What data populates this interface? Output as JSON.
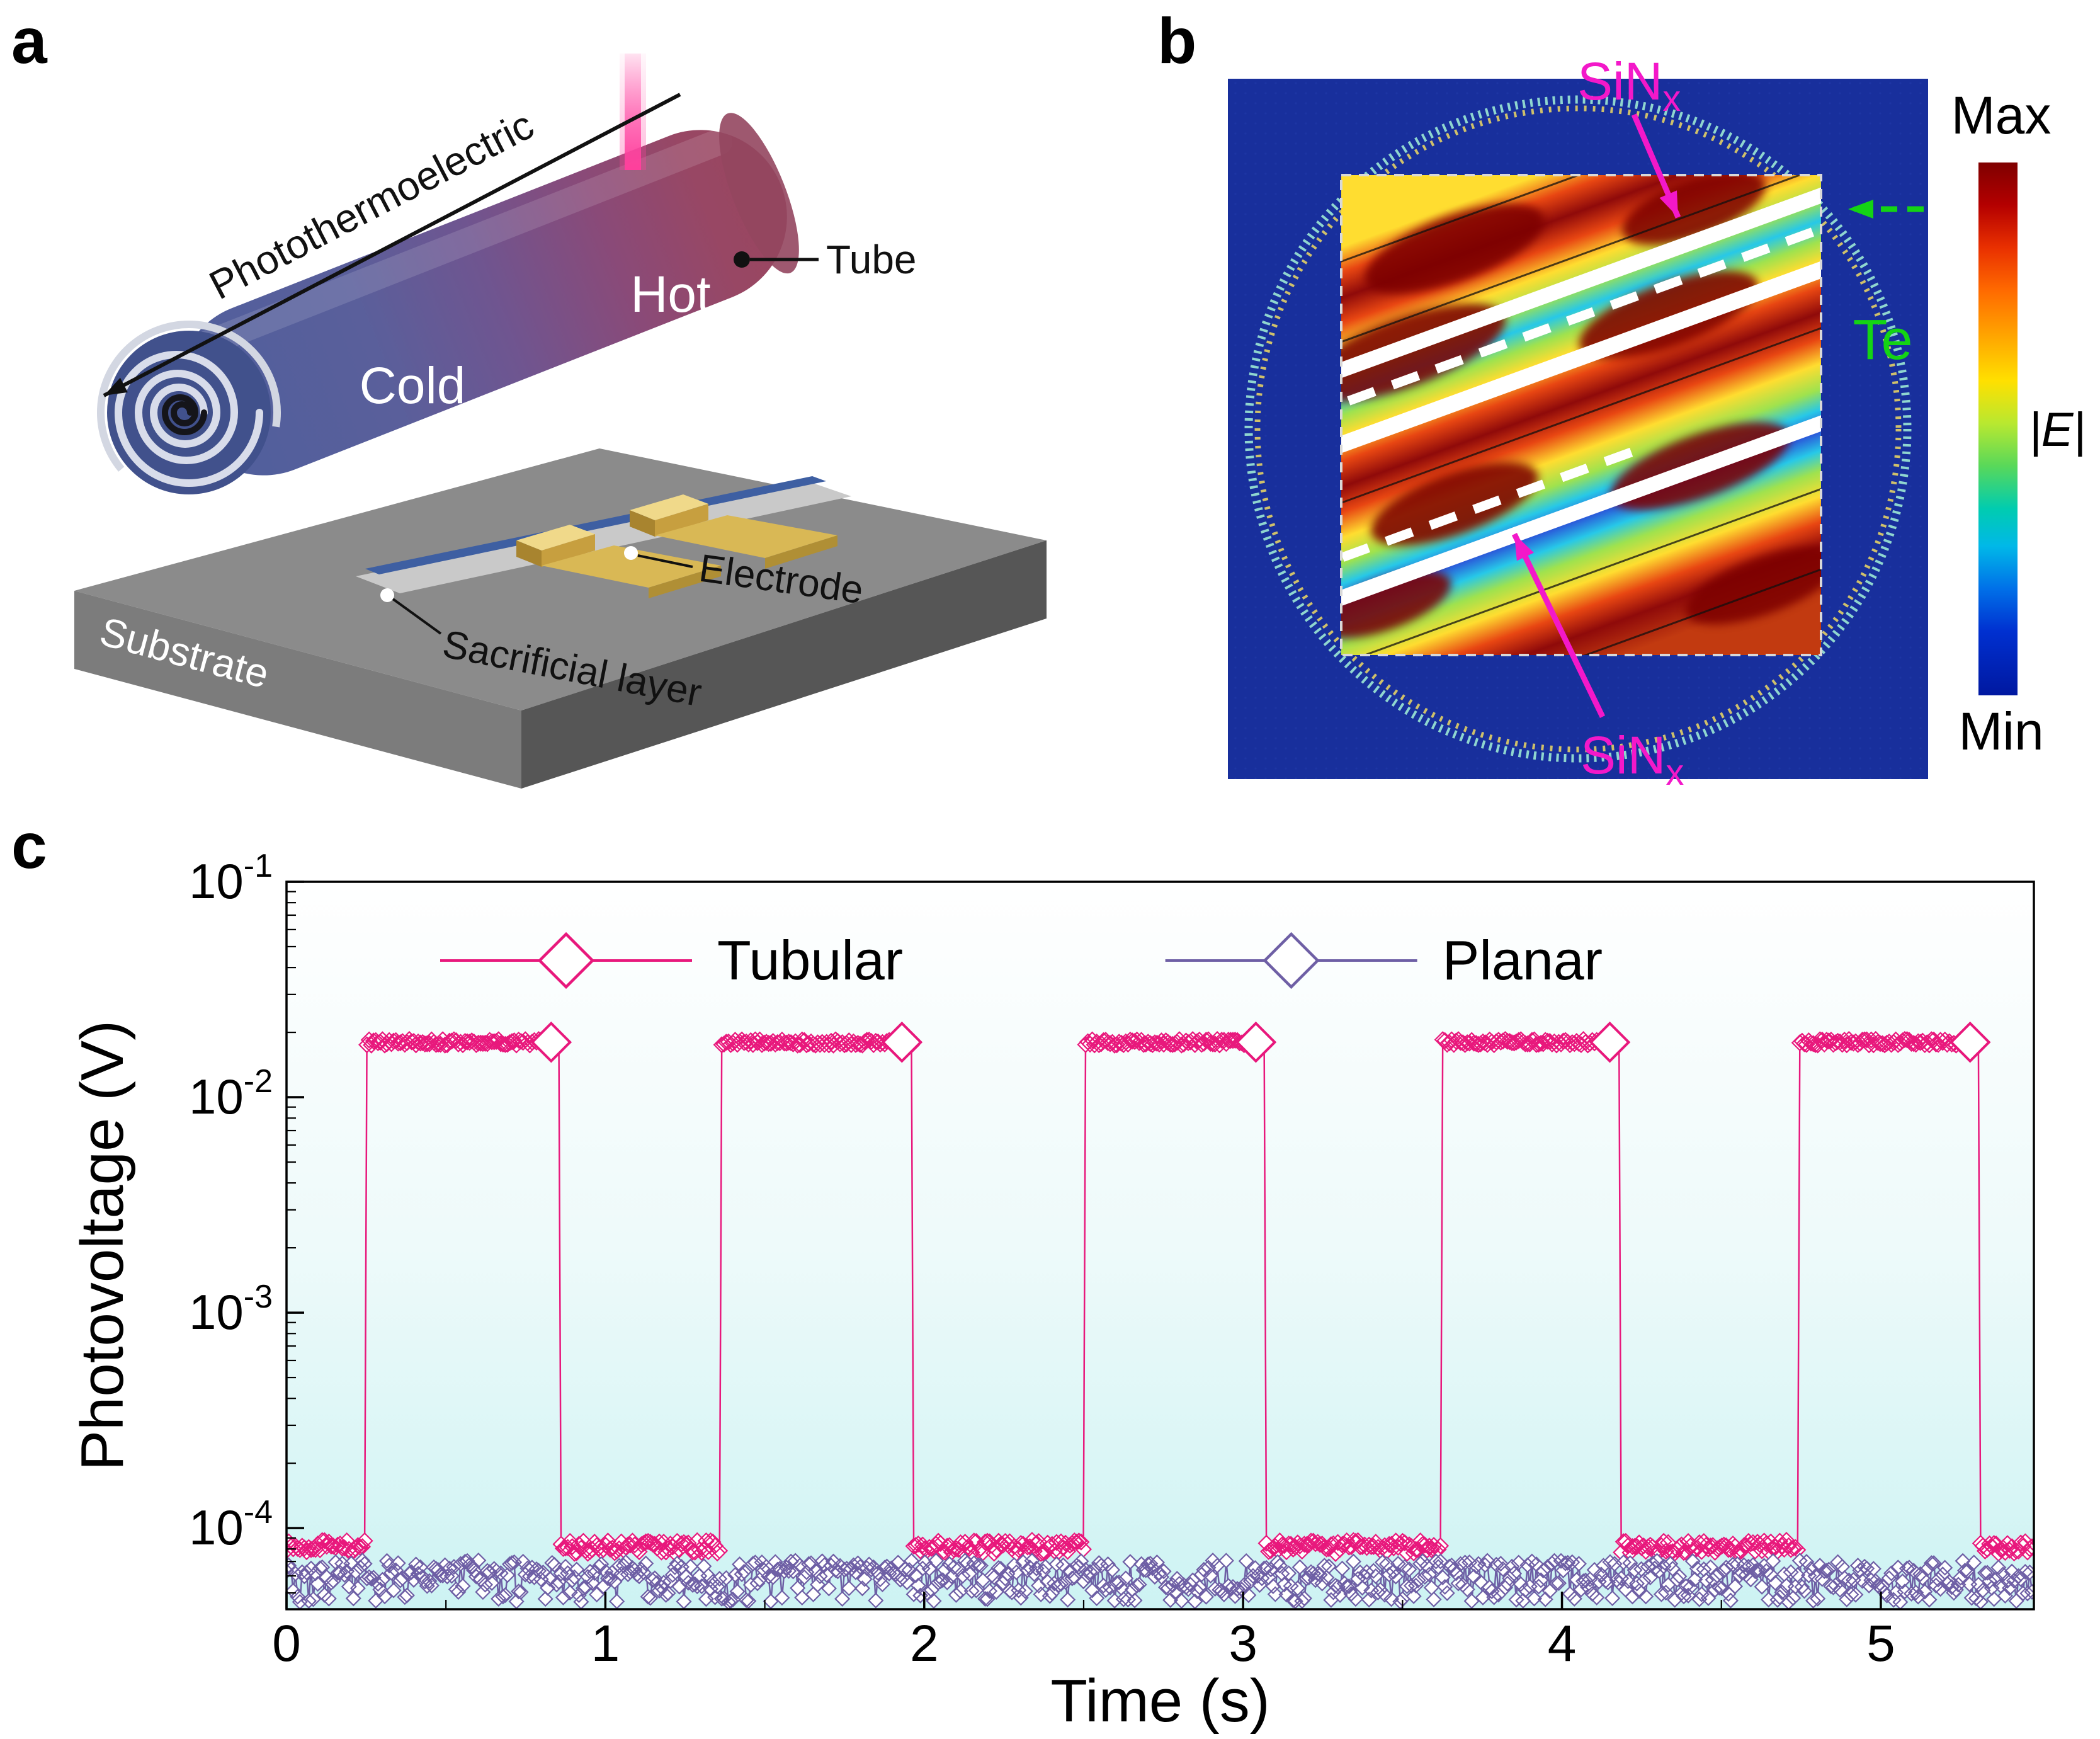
{
  "panels": {
    "a": "a",
    "b": "b",
    "c": "c"
  },
  "panel_a": {
    "arrow_label": "Photothermoelectric",
    "hot_label": "Hot",
    "cold_label": "Cold",
    "tube_label": "Tube",
    "electrode_label": "Electrode",
    "sacrificial_label": "Sacrificial layer",
    "substrate_label": "Substrate"
  },
  "panel_b": {
    "sinx_top": {
      "text": "SiN",
      "sub": "x"
    },
    "sinx_bottom": {
      "text": "SiN",
      "sub": "x"
    },
    "te_label": "Te",
    "colorbar": {
      "max": "Max",
      "min": "Min",
      "quantity": "|E|"
    },
    "colors": {
      "annotation_magenta": "#f318c9",
      "annotation_green": "#14d414",
      "background_blue": "#182f9c"
    }
  },
  "chart_data": {
    "type": "line",
    "title": "",
    "xlabel": "Time (s)",
    "ylabel": "Photovoltage (V)",
    "x_scale": "linear",
    "y_scale": "log",
    "xlim": [
      0,
      5.48
    ],
    "ylim": [
      4.2e-05,
      0.1
    ],
    "x_ticks": [
      0,
      1,
      2,
      3,
      4,
      5
    ],
    "y_tick_exponents": [
      -1,
      -2,
      -3,
      -4
    ],
    "grid": false,
    "legend_position": "top-inside",
    "series": [
      {
        "name": "Tubular",
        "color": "#e8187c",
        "marker": "diamond",
        "kind": "pulse",
        "baseline": 8.2e-05,
        "peak": 0.018,
        "pulses": [
          [
            0.25,
            0.86
          ],
          [
            1.36,
            1.96
          ],
          [
            2.5,
            3.07
          ],
          [
            3.62,
            4.18
          ],
          [
            4.74,
            5.31
          ]
        ]
      },
      {
        "name": "Planar",
        "color": "#6e5fa5",
        "marker": "diamond",
        "kind": "flat",
        "baseline": 5.8e-05,
        "noise": 0.22
      }
    ]
  }
}
